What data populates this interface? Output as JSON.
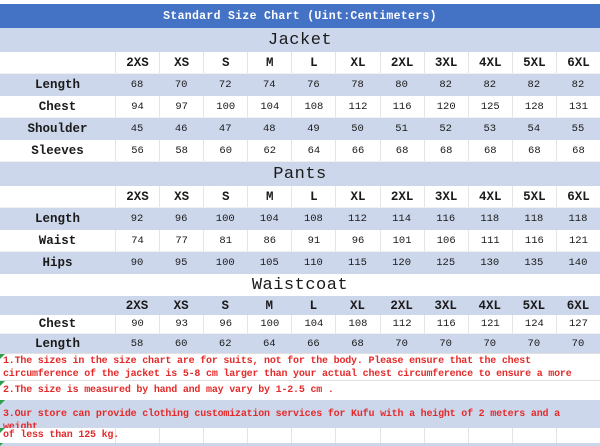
{
  "header": {
    "title": "Standard Size Chart (Uint:Centimeters)"
  },
  "chart_data": [
    {
      "type": "table",
      "title": "Jacket",
      "columns": [
        "2XS",
        "XS",
        "S",
        "M",
        "L",
        "XL",
        "2XL",
        "3XL",
        "4XL",
        "5XL",
        "6XL"
      ],
      "rows": [
        {
          "label": "Length",
          "values": [
            68,
            70,
            72,
            74,
            76,
            78,
            80,
            82,
            82,
            82,
            82
          ]
        },
        {
          "label": "Chest",
          "values": [
            94,
            97,
            100,
            104,
            108,
            112,
            116,
            120,
            125,
            128,
            131
          ]
        },
        {
          "label": "Shoulder",
          "values": [
            45,
            46,
            47,
            48,
            49,
            50,
            51,
            52,
            53,
            54,
            55
          ]
        },
        {
          "label": "Sleeves",
          "values": [
            56,
            58,
            60,
            62,
            64,
            66,
            68,
            68,
            68,
            68,
            68
          ]
        }
      ]
    },
    {
      "type": "table",
      "title": "Pants",
      "columns": [
        "2XS",
        "XS",
        "S",
        "M",
        "L",
        "XL",
        "2XL",
        "3XL",
        "4XL",
        "5XL",
        "6XL"
      ],
      "rows": [
        {
          "label": "Length",
          "values": [
            92,
            96,
            100,
            104,
            108,
            112,
            114,
            116,
            118,
            118,
            118
          ]
        },
        {
          "label": "Waist",
          "values": [
            74,
            77,
            81,
            86,
            91,
            96,
            101,
            106,
            111,
            116,
            121
          ]
        },
        {
          "label": "Hips",
          "values": [
            90,
            95,
            100,
            105,
            110,
            115,
            120,
            125,
            130,
            135,
            140
          ]
        }
      ]
    },
    {
      "type": "table",
      "title": "Waistcoat",
      "columns": [
        "2XS",
        "XS",
        "S",
        "M",
        "L",
        "XL",
        "2XL",
        "3XL",
        "4XL",
        "5XL",
        "6XL"
      ],
      "rows": [
        {
          "label": "Chest",
          "values": [
            90,
            93,
            96,
            100,
            104,
            108,
            112,
            116,
            121,
            124,
            127
          ]
        },
        {
          "label": "Length",
          "values": [
            58,
            60,
            62,
            64,
            66,
            68,
            70,
            70,
            70,
            70,
            70
          ]
        }
      ]
    }
  ],
  "notes": [
    {
      "lines": [
        "1.The sizes in the size chart are for suits, not for the body. Please ensure that the chest",
        "circumference of the jacket is 5-8 cm larger than your actual chest circumference to ensure a more"
      ]
    },
    {
      "lines": [
        "2.The size is measured by hand and may vary by 1-2.5 cm ."
      ]
    },
    {
      "lines": [
        "3.Our store can provide clothing customization services for Kufu with a height of 2 meters and a weight",
        "of less than 125 kg."
      ]
    }
  ],
  "colors": {
    "header_bg": "#4472C4",
    "header_text": "#FFFFFF",
    "alt_row_bg": "#CDD7EB",
    "note_text": "#E42A2A",
    "flag_green": "#2E9E4E",
    "grid_line": "#E4E4E4",
    "table_text": "#1A1A1A"
  }
}
